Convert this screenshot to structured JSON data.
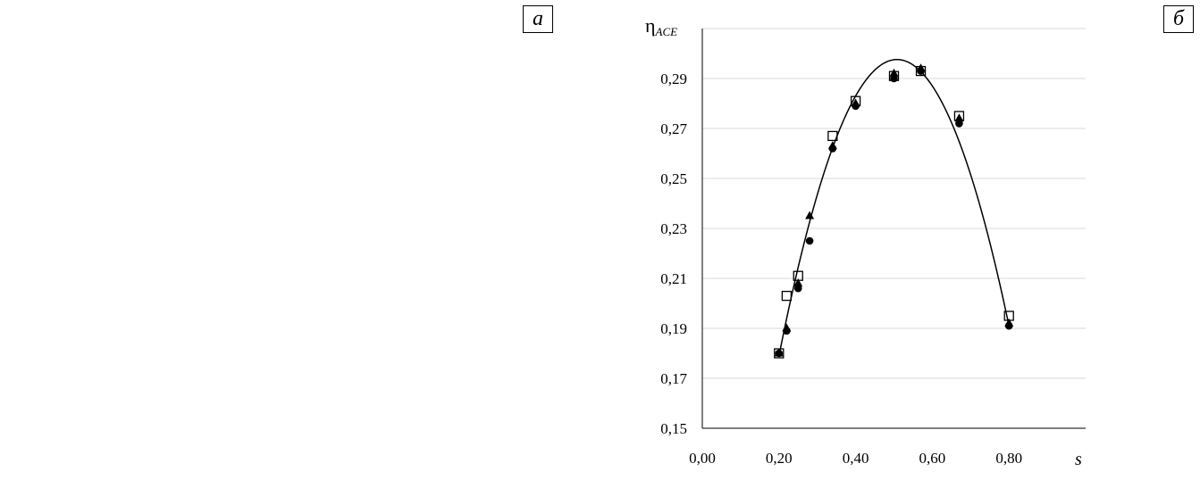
{
  "panels": {
    "left_label": "а",
    "right_label": "б"
  },
  "chart_data": {
    "type": "scatter",
    "ylabel": "η",
    "ylabel_sub": "ACE",
    "xlabel": "s",
    "xlim": [
      0.0,
      1.0
    ],
    "ylim": [
      0.15,
      0.31
    ],
    "x_ticks": [
      0.0,
      0.2,
      0.4,
      0.6,
      0.8
    ],
    "x_tick_labels": [
      "0,00",
      "0,20",
      "0,40",
      "0,60",
      "0,80"
    ],
    "y_ticks": [
      0.15,
      0.17,
      0.19,
      0.21,
      0.23,
      0.25,
      0.27,
      0.29
    ],
    "y_tick_labels": [
      "0,15",
      "0,17",
      "0,19",
      "0,21",
      "0,23",
      "0,25",
      "0,27",
      "0,29"
    ],
    "grid": "horizontal",
    "series": [
      {
        "marker": "circle-filled",
        "color": "#000000",
        "x": [
          0.2,
          0.22,
          0.25,
          0.28,
          0.34,
          0.4,
          0.5,
          0.57,
          0.67,
          0.8
        ],
        "y": [
          0.18,
          0.189,
          0.206,
          0.225,
          0.262,
          0.279,
          0.29,
          0.293,
          0.272,
          0.191
        ]
      },
      {
        "marker": "triangle-filled",
        "color": "#000000",
        "x": [
          0.2,
          0.22,
          0.25,
          0.28,
          0.34,
          0.4,
          0.5,
          0.57,
          0.67,
          0.8
        ],
        "y": [
          0.18,
          0.19,
          0.208,
          0.235,
          0.263,
          0.28,
          0.292,
          0.294,
          0.274,
          0.192
        ]
      },
      {
        "marker": "square-open",
        "color": "#000000",
        "x": [
          0.2,
          0.22,
          0.25,
          0.34,
          0.4,
          0.5,
          0.57,
          0.67,
          0.8
        ],
        "y": [
          0.18,
          0.203,
          0.211,
          0.267,
          0.281,
          0.291,
          0.293,
          0.275,
          0.195
        ]
      }
    ],
    "fit_curve": {
      "type": "polynomial",
      "x_range": [
        0.2,
        0.8
      ],
      "points": [
        [
          0.2,
          0.179
        ],
        [
          0.53,
          0.297
        ],
        [
          0.8,
          0.191
        ]
      ]
    }
  }
}
